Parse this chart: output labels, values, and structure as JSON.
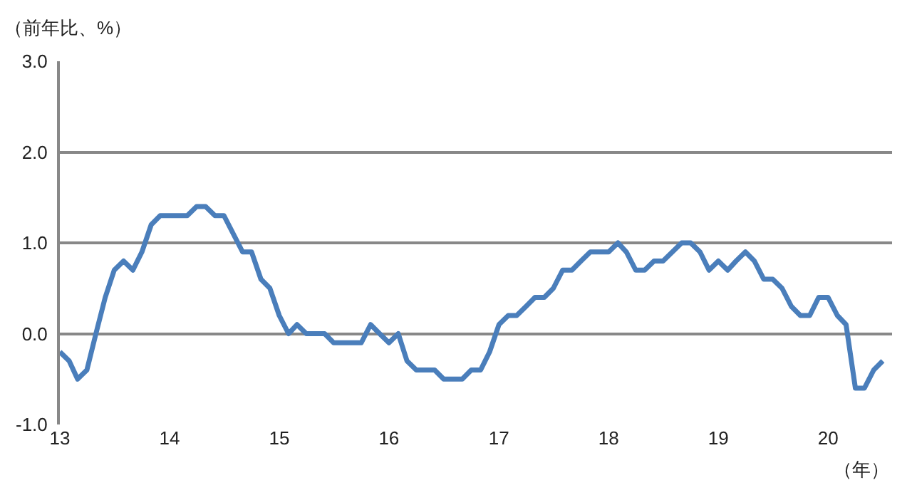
{
  "chart_data": {
    "type": "line",
    "ylabel": "（前年比、%）",
    "xlabel": "（年）",
    "x": [
      "2013-01",
      "2013-02",
      "2013-03",
      "2013-04",
      "2013-05",
      "2013-06",
      "2013-07",
      "2013-08",
      "2013-09",
      "2013-10",
      "2013-11",
      "2013-12",
      "2014-01",
      "2014-02",
      "2014-03",
      "2014-04",
      "2014-05",
      "2014-06",
      "2014-07",
      "2014-08",
      "2014-09",
      "2014-10",
      "2014-11",
      "2014-12",
      "2015-01",
      "2015-02",
      "2015-03",
      "2015-04",
      "2015-05",
      "2015-06",
      "2015-07",
      "2015-08",
      "2015-09",
      "2015-10",
      "2015-11",
      "2015-12",
      "2016-01",
      "2016-02",
      "2016-03",
      "2016-04",
      "2016-05",
      "2016-06",
      "2016-07",
      "2016-08",
      "2016-09",
      "2016-10",
      "2016-11",
      "2016-12",
      "2017-01",
      "2017-02",
      "2017-03",
      "2017-04",
      "2017-05",
      "2017-06",
      "2017-07",
      "2017-08",
      "2017-09",
      "2017-10",
      "2017-11",
      "2017-12",
      "2018-01",
      "2018-02",
      "2018-03",
      "2018-04",
      "2018-05",
      "2018-06",
      "2018-07",
      "2018-08",
      "2018-09",
      "2018-10",
      "2018-11",
      "2018-12",
      "2019-01",
      "2019-02",
      "2019-03",
      "2019-04",
      "2019-05",
      "2019-06",
      "2019-07",
      "2019-08",
      "2019-09",
      "2019-10",
      "2019-11",
      "2019-12",
      "2020-01",
      "2020-02",
      "2020-03",
      "2020-04",
      "2020-05",
      "2020-06",
      "2020-07"
    ],
    "series": [
      {
        "color": "#4a7ebb",
        "values": [
          -0.2,
          -0.3,
          -0.5,
          -0.4,
          0.0,
          0.4,
          0.7,
          0.8,
          0.7,
          0.9,
          1.2,
          1.3,
          1.3,
          1.3,
          1.3,
          1.4,
          1.4,
          1.3,
          1.3,
          1.1,
          0.9,
          0.9,
          0.6,
          0.5,
          0.2,
          0.0,
          0.1,
          0.0,
          0.0,
          0.0,
          -0.1,
          -0.1,
          -0.1,
          -0.1,
          0.1,
          0.0,
          -0.1,
          0.0,
          -0.3,
          -0.4,
          -0.4,
          -0.4,
          -0.5,
          -0.5,
          -0.5,
          -0.4,
          -0.4,
          -0.2,
          0.1,
          0.2,
          0.2,
          0.3,
          0.4,
          0.4,
          0.5,
          0.7,
          0.7,
          0.8,
          0.9,
          0.9,
          0.9,
          1.0,
          0.9,
          0.7,
          0.7,
          0.8,
          0.8,
          0.9,
          1.0,
          1.0,
          0.9,
          0.7,
          0.8,
          0.7,
          0.8,
          0.9,
          0.8,
          0.6,
          0.6,
          0.5,
          0.3,
          0.2,
          0.2,
          0.4,
          0.4,
          0.2,
          0.1,
          -0.6,
          -0.6,
          -0.4,
          -0.3
        ]
      }
    ],
    "xlim": [
      "2013-01-01",
      "2020-08-01"
    ],
    "xticks": [
      {
        "value": "2013-01-01",
        "label": "13"
      },
      {
        "value": "2014-01-01",
        "label": "14"
      },
      {
        "value": "2015-01-01",
        "label": "15"
      },
      {
        "value": "2016-01-01",
        "label": "16"
      },
      {
        "value": "2017-01-01",
        "label": "17"
      },
      {
        "value": "2018-01-01",
        "label": "18"
      },
      {
        "value": "2019-01-01",
        "label": "19"
      },
      {
        "value": "2020-01-01",
        "label": "20"
      }
    ],
    "ylim": [
      -1.0,
      3.0
    ],
    "yticks": [
      {
        "value": -1.0,
        "label": "-1.0"
      },
      {
        "value": 0.0,
        "label": "0.0"
      },
      {
        "value": 1.0,
        "label": "1.0"
      },
      {
        "value": 2.0,
        "label": "2.0"
      },
      {
        "value": 3.0,
        "label": "3.0"
      }
    ],
    "grid": "y",
    "marker": "none",
    "line_style": "solid"
  }
}
